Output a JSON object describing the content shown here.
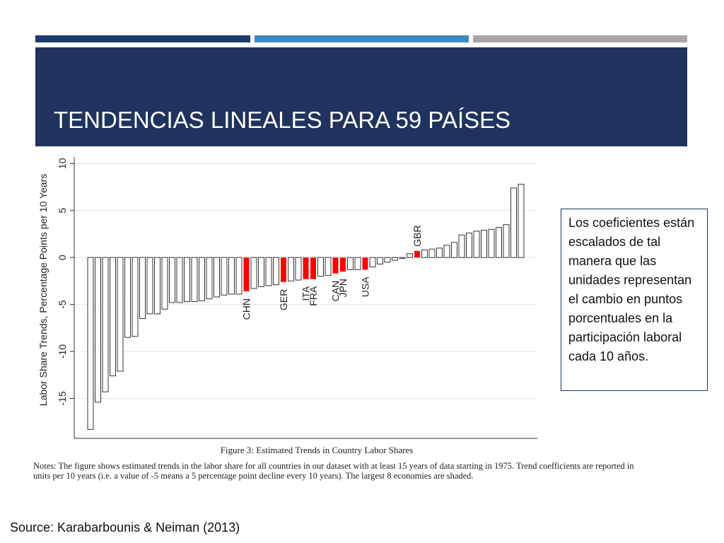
{
  "slide": {
    "title": "TENDENCIAS LINEALES PARA 59 PAÍSES",
    "note_box": "Los coeficientes están escalados de tal manera que las unidades representan el cambio en puntos porcentuales en la participación laboral cada 10 años.",
    "source": "Source: Karabarbounis & Neiman (2013)"
  },
  "chart_data": {
    "type": "bar",
    "y_label": "Labor Share Trends, Percentage Points per 10 Years",
    "caption": "Figure 3: Estimated Trends in Country Labor Shares",
    "notes": "Notes: The figure shows estimated trends in the labor share for all countries in our dataset with at least 15 years of data starting in 1975. Trend coefficients are reported in units per 10 years (i.e. a value of -5 means a 5 percentage point decline every 10 years). The largest 8 economies are shaded.",
    "categories": [
      null,
      null,
      null,
      null,
      null,
      null,
      null,
      null,
      null,
      null,
      null,
      null,
      null,
      null,
      null,
      null,
      null,
      null,
      null,
      null,
      null,
      "CHN",
      null,
      null,
      null,
      null,
      "GER",
      null,
      null,
      "ITA",
      "FRA",
      null,
      null,
      "CAN",
      "JPN",
      null,
      null,
      "USA",
      null,
      null,
      null,
      null,
      null,
      null,
      "GBR",
      null,
      null,
      null,
      null,
      null,
      null,
      null,
      null,
      null,
      null,
      null,
      null,
      null,
      null
    ],
    "values": [
      -18.3,
      -15.4,
      -14.3,
      -12.6,
      -12.1,
      -8.5,
      -8.4,
      -6.5,
      -6.0,
      -6.0,
      -5.5,
      -4.8,
      -4.8,
      -4.7,
      -4.7,
      -4.6,
      -4.4,
      -4.2,
      -4.0,
      -3.9,
      -3.9,
      -3.6,
      -3.3,
      -3.1,
      -3.0,
      -2.9,
      -2.6,
      -2.5,
      -2.4,
      -2.3,
      -2.3,
      -2.0,
      -1.9,
      -1.7,
      -1.5,
      -1.3,
      -1.3,
      -1.3,
      -1.0,
      -0.7,
      -0.5,
      -0.3,
      -0.1,
      0.4,
      0.7,
      0.8,
      0.9,
      1.0,
      1.3,
      1.6,
      2.4,
      2.6,
      2.8,
      2.9,
      3.0,
      3.2,
      3.5,
      7.4,
      7.8
    ],
    "color": "#ffffff",
    "edge_color": "#333333",
    "highlight_color": "#ff0000",
    "ylim": [
      -19.1,
      10.7
    ],
    "yticks": [
      -15,
      -10,
      -5,
      0,
      5,
      10
    ],
    "grid": true
  }
}
